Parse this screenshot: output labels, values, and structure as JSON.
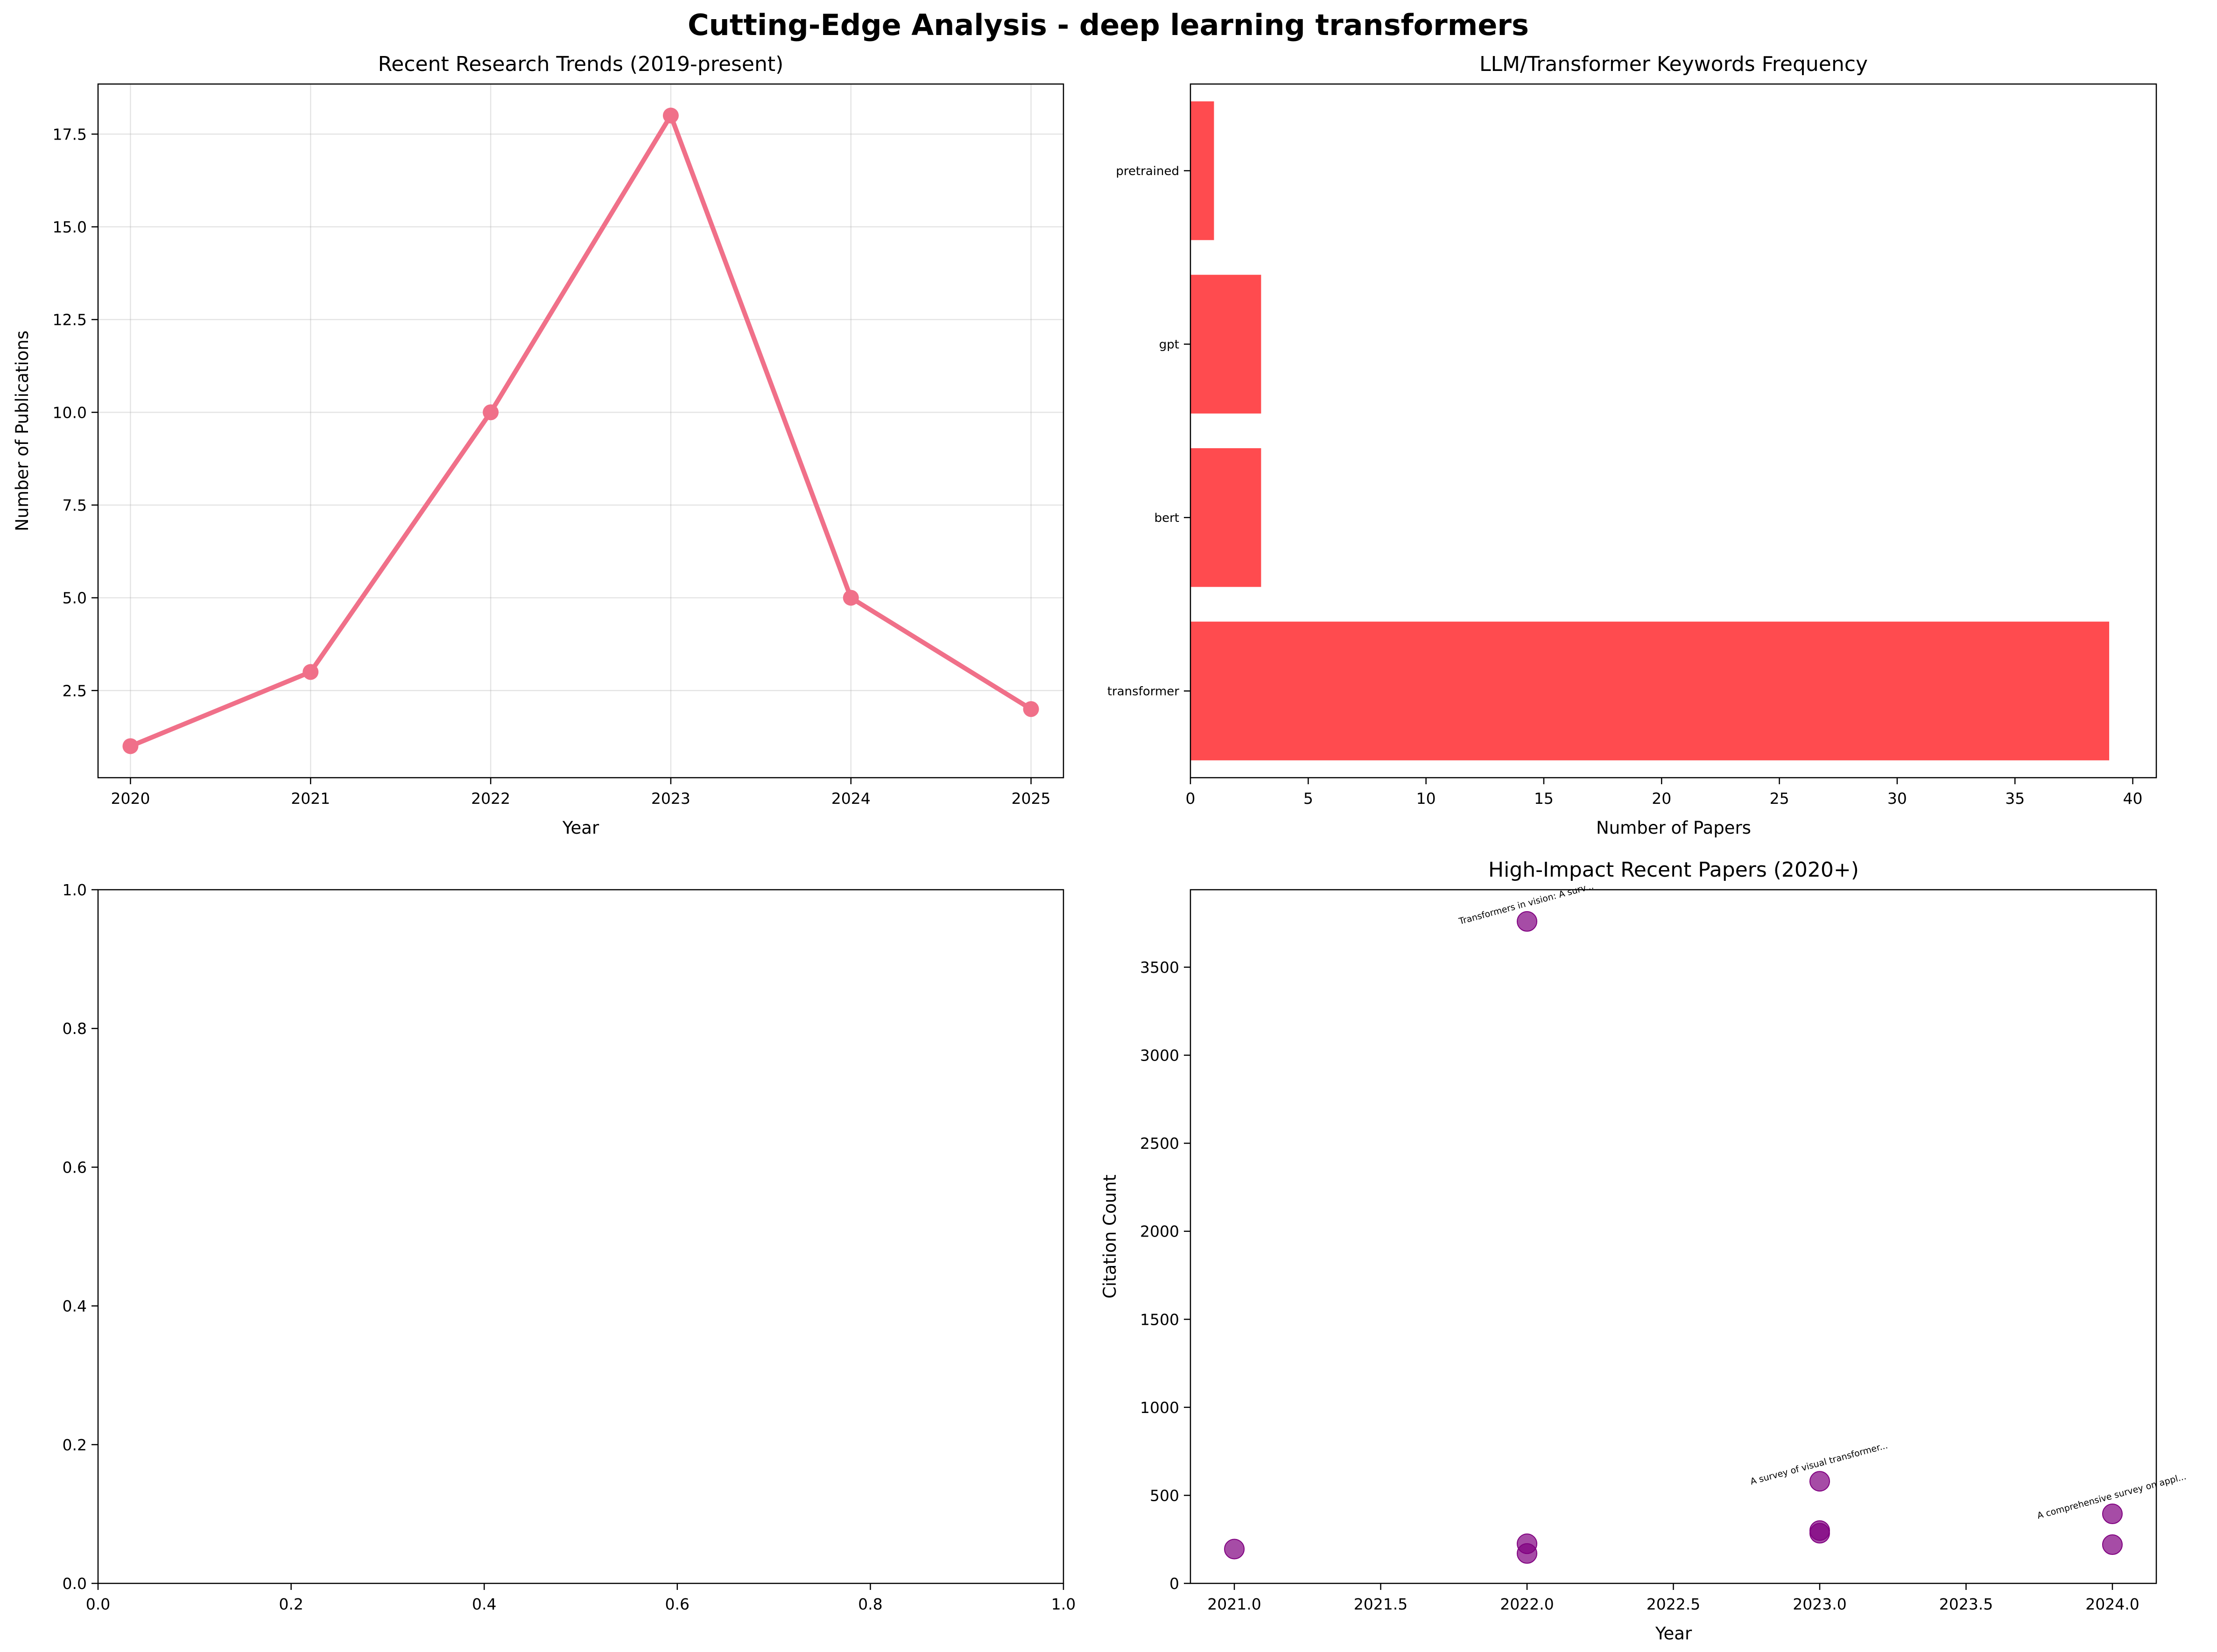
{
  "figure": {
    "title": "Cutting-Edge Analysis - deep learning transformers"
  },
  "chart_data": [
    {
      "type": "line",
      "title": "Recent Research Trends (2019-present)",
      "xlabel": "Year",
      "ylabel": "Number of Publications",
      "x": [
        2020,
        2021,
        2022,
        2023,
        2024,
        2025
      ],
      "y": [
        1,
        3,
        10,
        18,
        5,
        2
      ],
      "xlim": [
        2019.82,
        2025.18
      ],
      "ylim": [
        0.15,
        18.85
      ],
      "xticks": [
        "2020",
        "2021",
        "2022",
        "2023",
        "2024",
        "2025"
      ],
      "yticks": [
        "2.5",
        "5.0",
        "7.5",
        "10.0",
        "12.5",
        "15.0",
        "17.5"
      ],
      "grid": true,
      "color": "#f07089"
    },
    {
      "type": "bar",
      "orientation": "horizontal",
      "title": "LLM/Transformer Keywords Frequency",
      "xlabel": "Number of Papers",
      "ylabel": "",
      "categories": [
        "transformer",
        "bert",
        "gpt",
        "pretrained"
      ],
      "values": [
        39,
        3,
        3,
        1
      ],
      "xlim": [
        0,
        41
      ],
      "xticks": [
        "0",
        "5",
        "10",
        "15",
        "20",
        "25",
        "30",
        "35",
        "40"
      ],
      "grid": false,
      "color": "#ff4b4f"
    },
    {
      "type": "scatter",
      "title": "",
      "xlabel": "",
      "ylabel": "",
      "points": [],
      "xlim": [
        0,
        1
      ],
      "ylim": [
        0,
        1
      ],
      "xticks": [
        "0.0",
        "0.2",
        "0.4",
        "0.6",
        "0.8",
        "1.0"
      ],
      "yticks": [
        "0.0",
        "0.2",
        "0.4",
        "0.6",
        "0.8",
        "1.0"
      ],
      "grid": false
    },
    {
      "type": "scatter",
      "title": "High-Impact Recent Papers (2020+)",
      "xlabel": "Year",
      "ylabel": "Citation Count",
      "points": [
        {
          "x": 2021,
          "y": 195
        },
        {
          "x": 2022,
          "y": 3760
        },
        {
          "x": 2022,
          "y": 225
        },
        {
          "x": 2022,
          "y": 170
        },
        {
          "x": 2023,
          "y": 580
        },
        {
          "x": 2023,
          "y": 300
        },
        {
          "x": 2023,
          "y": 285
        },
        {
          "x": 2024,
          "y": 395
        },
        {
          "x": 2024,
          "y": 220
        }
      ],
      "annotations": [
        {
          "text": "Transformers in vision: A surv...",
          "x": 2022,
          "y": 3760
        },
        {
          "text": "A survey of visual transformer...",
          "x": 2023,
          "y": 580
        },
        {
          "text": "A comprehensive survey on appl...",
          "x": 2024,
          "y": 395
        }
      ],
      "xlim": [
        2020.85,
        2024.15
      ],
      "ylim": [
        0,
        3940
      ],
      "xticks": [
        "2021.0",
        "2021.5",
        "2022.0",
        "2022.5",
        "2023.0",
        "2023.5",
        "2024.0"
      ],
      "yticks": [
        "0",
        "500",
        "1000",
        "1500",
        "2000",
        "2500",
        "3000",
        "3500"
      ],
      "grid": false,
      "color": "#800080"
    }
  ]
}
